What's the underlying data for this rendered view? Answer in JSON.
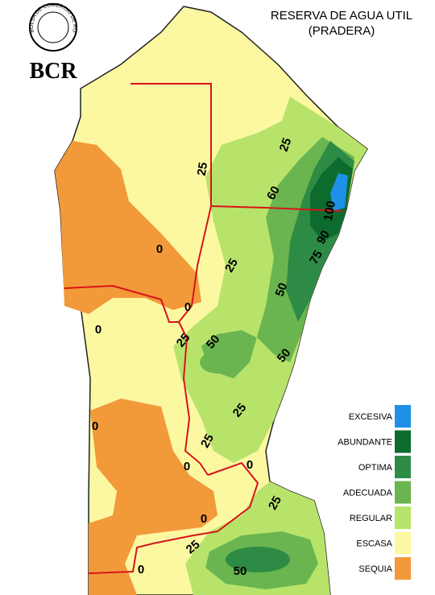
{
  "header": {
    "title_line1": "RESERVA DE AGUA UTIL",
    "title_line2": "(PRADERA)"
  },
  "logo": {
    "text": "BCR",
    "ring_text": "BOLSA DE COMERCIO DE ROSARIO"
  },
  "legend": {
    "items": [
      {
        "label": "EXCESIVA",
        "color": "#1e90e8"
      },
      {
        "label": "ABUNDANTE",
        "color": "#0d6b2e"
      },
      {
        "label": "OPTIMA",
        "color": "#2e8b45"
      },
      {
        "label": "ADECUADA",
        "color": "#6ab54f"
      },
      {
        "label": "REGULAR",
        "color": "#b8e36b"
      },
      {
        "label": "ESCASA",
        "color": "#fcf8a2"
      },
      {
        "label": "SEQUIA",
        "color": "#f2993a"
      }
    ]
  },
  "contour_labels": [
    25,
    25,
    60,
    100,
    90,
    75,
    0,
    25,
    50,
    0,
    0,
    25,
    50,
    50,
    25,
    0,
    25,
    0,
    0,
    25,
    0,
    25,
    0,
    50
  ]
}
